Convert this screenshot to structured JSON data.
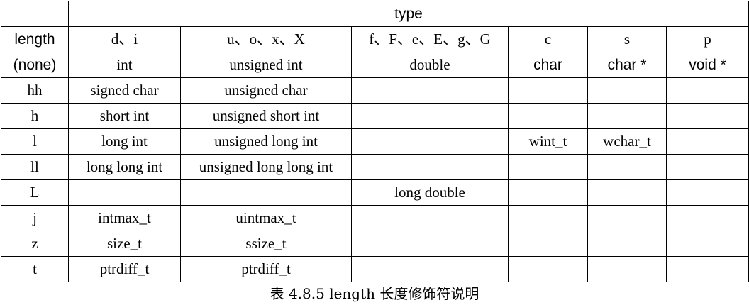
{
  "table": {
    "header_group_label": "type",
    "length_header": "length",
    "columns": [
      "d、i",
      "u、o、x、X",
      "f、F、e、E、g、G",
      "c",
      "s",
      "p"
    ],
    "rows": [
      {
        "length": "(none)",
        "cells": [
          "int",
          "unsigned int",
          "double",
          "char",
          "char *",
          "void *"
        ]
      },
      {
        "length": "hh",
        "cells": [
          "signed char",
          "unsigned char",
          "",
          "",
          "",
          ""
        ]
      },
      {
        "length": "h",
        "cells": [
          "short int",
          "unsigned short int",
          "",
          "",
          "",
          ""
        ]
      },
      {
        "length": "l",
        "cells": [
          "long int",
          "unsigned long int",
          "",
          "wint_t",
          "wchar_t",
          ""
        ]
      },
      {
        "length": "ll",
        "cells": [
          "long long int",
          "unsigned long long int",
          "",
          "",
          "",
          ""
        ]
      },
      {
        "length": "L",
        "cells": [
          "",
          "",
          "long double",
          "",
          "",
          ""
        ]
      },
      {
        "length": "j",
        "cells": [
          "intmax_t",
          "uintmax_t",
          "",
          "",
          "",
          ""
        ]
      },
      {
        "length": "z",
        "cells": [
          "size_t",
          "ssize_t",
          "",
          "",
          "",
          ""
        ]
      },
      {
        "length": "t",
        "cells": [
          "ptrdiff_t",
          "ptrdiff_t",
          "",
          "",
          "",
          ""
        ]
      }
    ]
  },
  "caption": "表  4.8.5 length 长度修饰符说明"
}
